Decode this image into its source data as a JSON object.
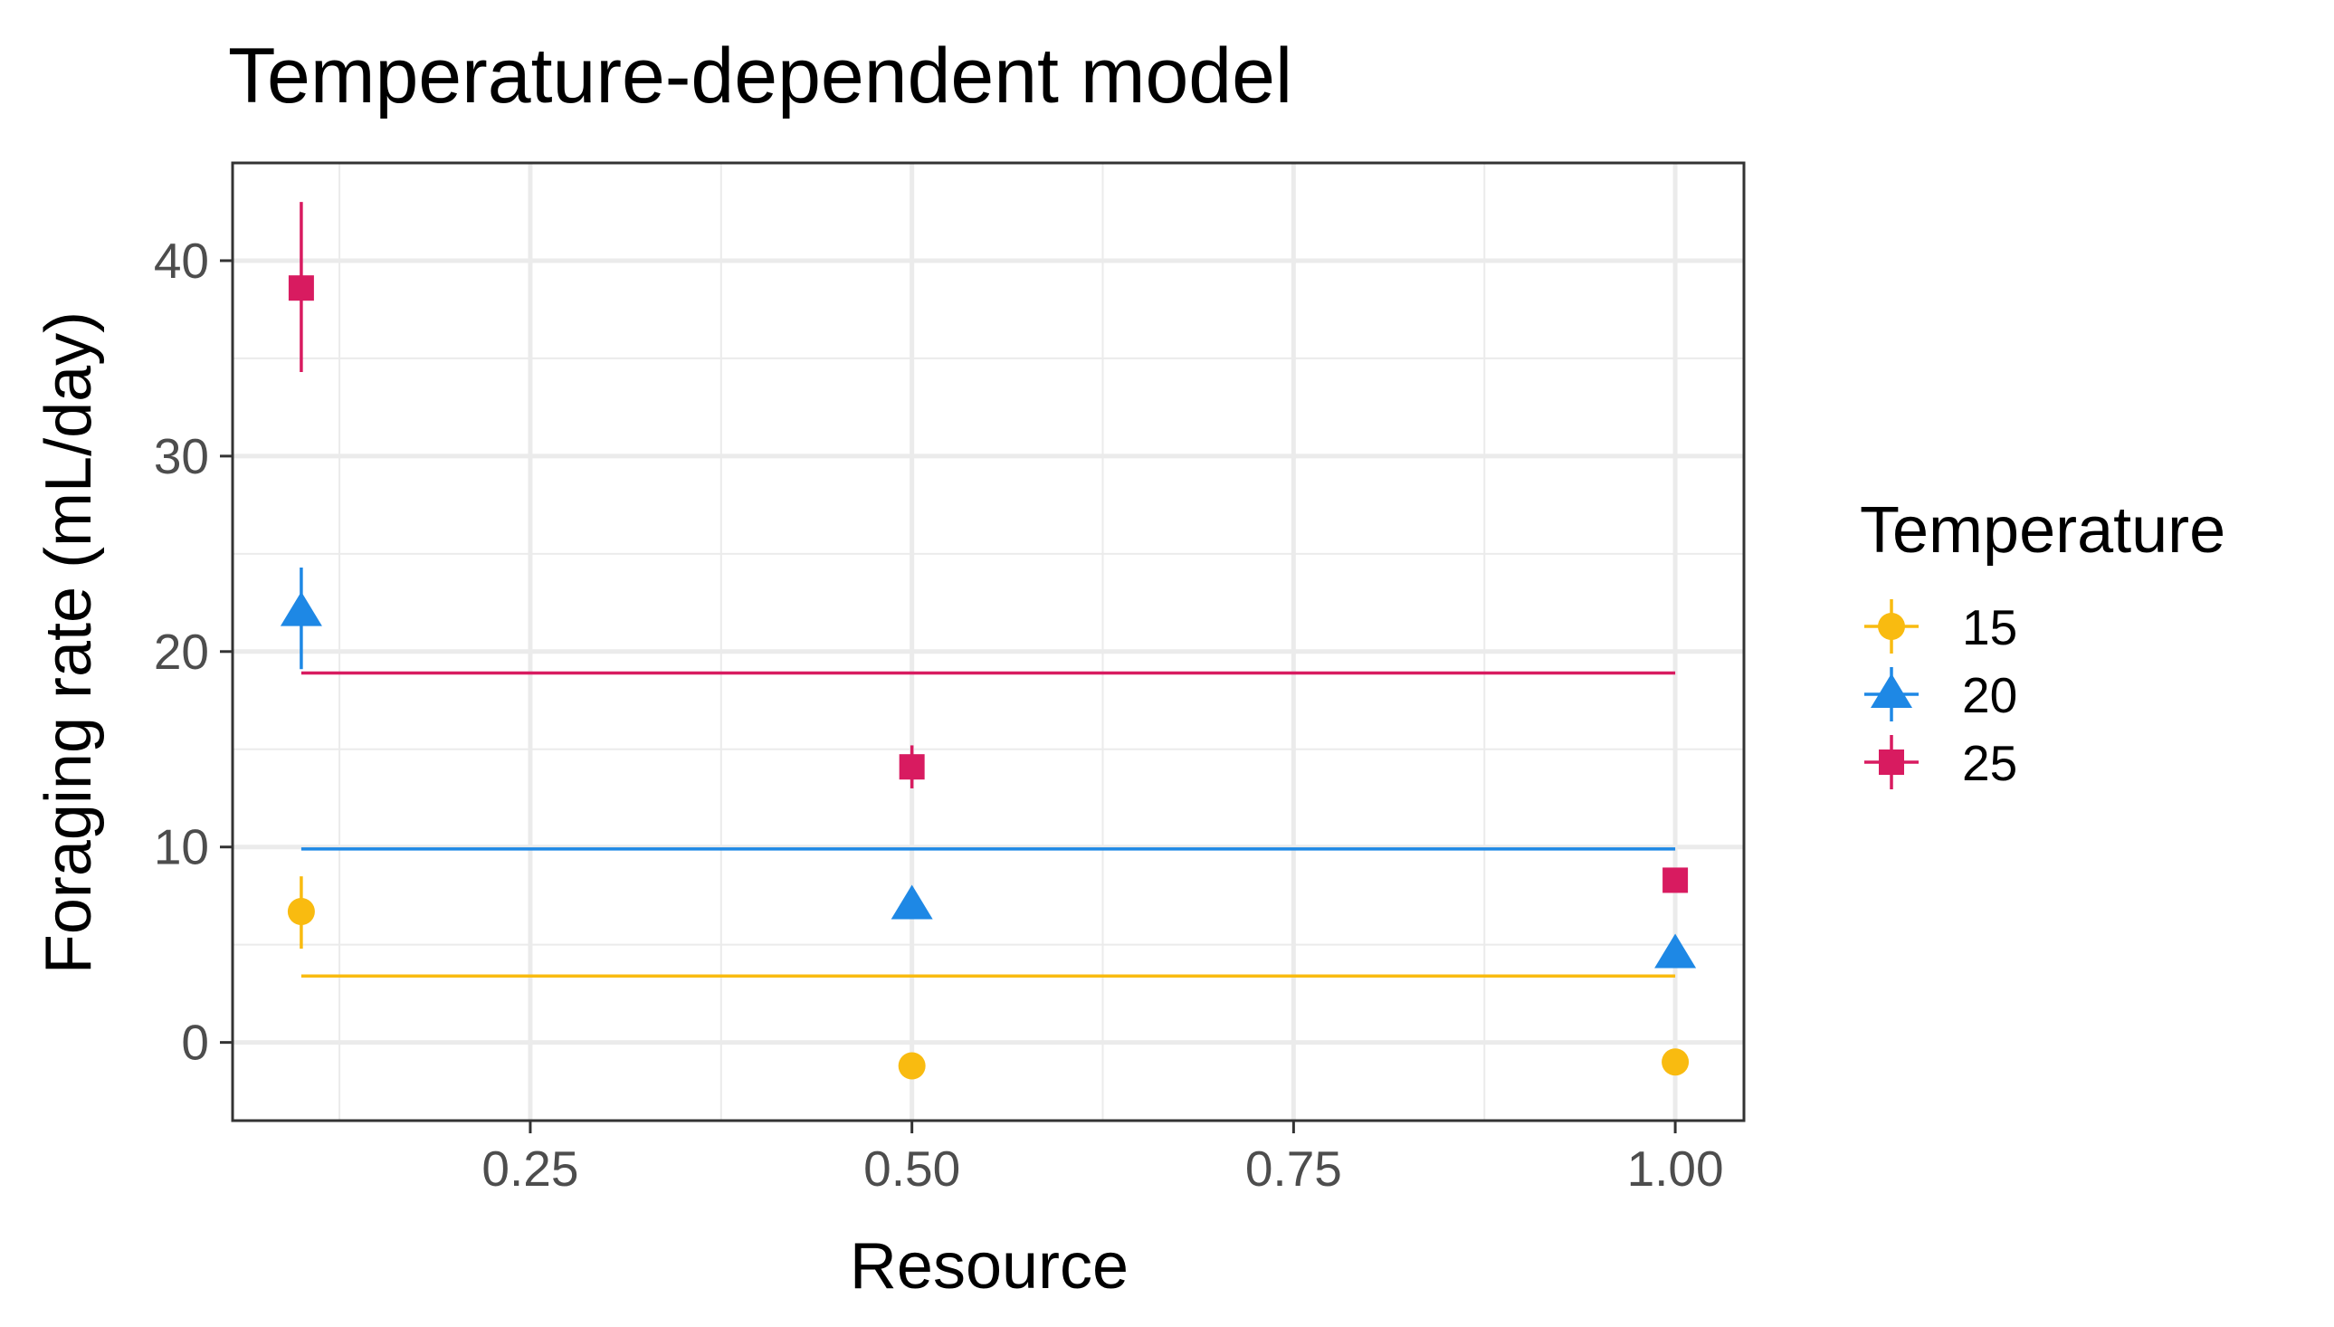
{
  "chart_data": {
    "type": "scatter",
    "title": "Temperature-dependent model",
    "xlabel": "Resource",
    "ylabel": "Foraging rate (mL/day)",
    "xlim": [
      0.055,
      1.045
    ],
    "ylim": [
      -4,
      45
    ],
    "x_major_ticks": [
      0.25,
      0.5,
      0.75,
      1.0
    ],
    "x_tick_labels": [
      "0.25",
      "0.50",
      "0.75",
      "1.00"
    ],
    "x_minor_ticks": [
      0.125,
      0.375,
      0.625,
      0.875
    ],
    "y_major_ticks": [
      0,
      10,
      20,
      30,
      40
    ],
    "y_tick_labels": [
      "0",
      "10",
      "20",
      "30",
      "40"
    ],
    "y_minor_ticks": [
      5,
      15,
      25,
      35
    ],
    "grid": true,
    "legend": {
      "title": "Temperature",
      "position": "right"
    },
    "series": [
      {
        "name": "15",
        "color": "#F9BB10",
        "marker": "circle",
        "points": [
          {
            "x": 0.1,
            "y": 6.7,
            "ymin": 4.8,
            "ymax": 8.5
          },
          {
            "x": 0.5,
            "y": -1.2,
            "ymin": null,
            "ymax": null
          },
          {
            "x": 1.0,
            "y": -1.0,
            "ymin": null,
            "ymax": null
          }
        ],
        "model_line": {
          "x": [
            0.1,
            1.0
          ],
          "y": [
            3.4,
            3.4
          ]
        }
      },
      {
        "name": "20",
        "color": "#1E88E5",
        "marker": "triangle",
        "points": [
          {
            "x": 0.1,
            "y": 22.0,
            "ymin": 19.1,
            "ymax": 24.3
          },
          {
            "x": 0.5,
            "y": 7.0,
            "ymin": null,
            "ymax": null
          },
          {
            "x": 1.0,
            "y": 4.5,
            "ymin": null,
            "ymax": null
          }
        ],
        "model_line": {
          "x": [
            0.1,
            1.0
          ],
          "y": [
            9.9,
            9.9
          ]
        }
      },
      {
        "name": "25",
        "color": "#D81B60",
        "marker": "square",
        "points": [
          {
            "x": 0.1,
            "y": 38.6,
            "ymin": 34.3,
            "ymax": 43.0
          },
          {
            "x": 0.5,
            "y": 14.1,
            "ymin": 13.0,
            "ymax": 15.2
          },
          {
            "x": 1.0,
            "y": 8.3,
            "ymin": null,
            "ymax": null
          }
        ],
        "model_line": {
          "x": [
            0.1,
            1.0
          ],
          "y": [
            18.9,
            18.9
          ]
        }
      }
    ]
  }
}
